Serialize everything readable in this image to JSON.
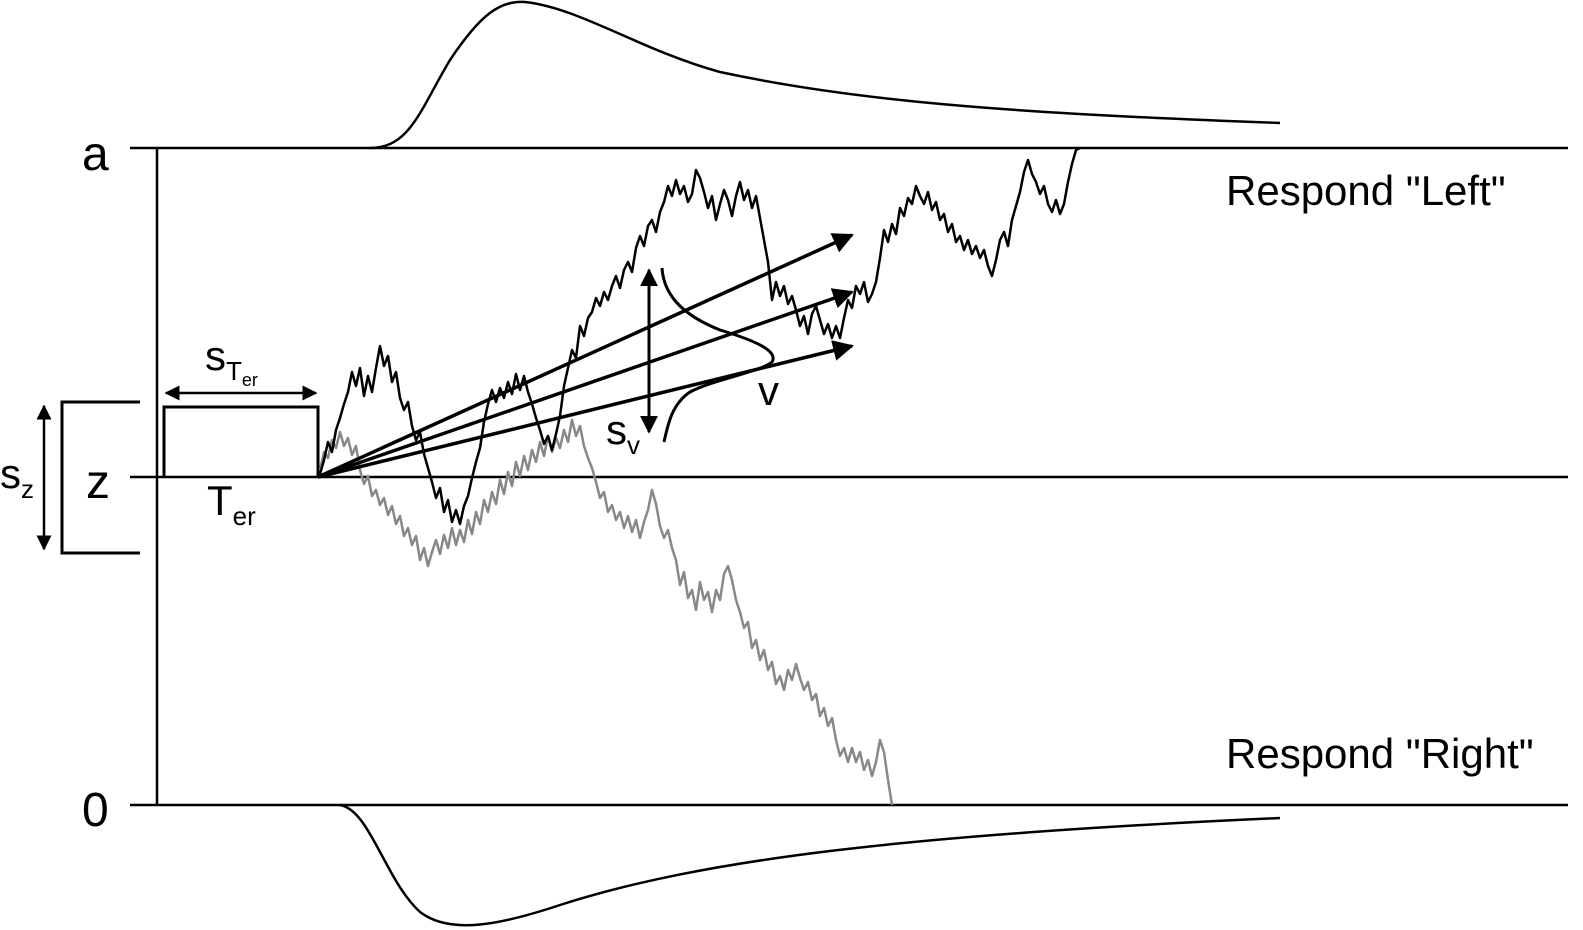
{
  "boundaries": {
    "upper_label": "a",
    "start_label": "z",
    "lower_label": "0"
  },
  "responses": {
    "upper": "Respond \"Left\"",
    "lower": "Respond \"Right\""
  },
  "parameters": {
    "ter_var": {
      "main": "s",
      "sub_main": "T",
      "sub_sub": "er"
    },
    "ter": {
      "main": "T",
      "sub": "er"
    },
    "sz": {
      "main": "s",
      "sub": "z"
    },
    "sv": {
      "main": "s",
      "sub": "v"
    },
    "v": "v"
  },
  "colors": {
    "ink": "#000000",
    "path_black": "#000000",
    "path_gray": "#888888"
  }
}
